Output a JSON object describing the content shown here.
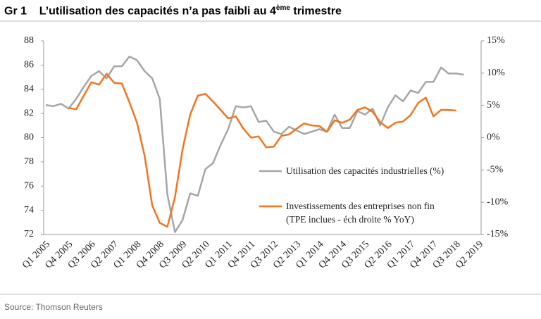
{
  "header": {
    "label": "Gr 1",
    "title": "L’utilisation des capacités n’a pas faibli au 4",
    "title_sup": "ème",
    "title_end": "trimestre"
  },
  "chart_data": {
    "type": "line",
    "categories": [
      "Q1 2005",
      null,
      null,
      "Q4 2005",
      null,
      null,
      "Q3 2006",
      null,
      null,
      "Q2 2007",
      null,
      null,
      "Q1 2008",
      null,
      null,
      "Q4 2008",
      null,
      null,
      "Q3 2009",
      null,
      null,
      "Q2 2010",
      null,
      null,
      "Q1 2011",
      null,
      null,
      "Q4 2011",
      null,
      null,
      "Q3 2012",
      null,
      null,
      "Q2 2013",
      null,
      null,
      "Q1 2014",
      null,
      null,
      "Q4 2014",
      null,
      null,
      "Q3 2015",
      null,
      null,
      "Q2 2016",
      null,
      null,
      "Q1 2017",
      null,
      null,
      "Q4 2017",
      null,
      null,
      "Q3 2018",
      null,
      null,
      "Q2 2019"
    ],
    "series": [
      {
        "name": "Utilisation des capacités industrielles (%)",
        "color": "#a6a6a6",
        "values": [
          82.7,
          82.6,
          82.8,
          82.4,
          83.2,
          84.2,
          85.1,
          85.5,
          84.9,
          85.9,
          85.9,
          86.7,
          86.4,
          85.5,
          84.9,
          83.2,
          75.3,
          72.2,
          73.2,
          75.4,
          75.2,
          77.4,
          77.9,
          79.4,
          80.7,
          82.6,
          82.5,
          82.6,
          81.3,
          81.4,
          80.5,
          80.3,
          80.9,
          80.6,
          80.3,
          80.5,
          80.7,
          80.5,
          81.9,
          80.8,
          80.8,
          82.2,
          81.9,
          82.4,
          81.0,
          82.5,
          83.5,
          83.0,
          83.9,
          83.7,
          84.6,
          84.6,
          85.8,
          85.3,
          85.3,
          85.2,
          null,
          null
        ]
      },
      {
        "name": "Investissements des entreprises non fin (TPE inclues - éch droite % YoY)",
        "color": "#f4741f",
        "axis": "y2",
        "values": [
          null,
          null,
          null,
          4.6,
          4.4,
          6.5,
          8.6,
          8.2,
          9.9,
          8.5,
          8.4,
          5.5,
          2.3,
          -2.8,
          -10.5,
          -13.2,
          -13.8,
          -9.2,
          -1.8,
          3.6,
          6.5,
          6.8,
          5.6,
          4.3,
          3.0,
          3.3,
          1.4,
          0.0,
          0.2,
          -1.5,
          -1.4,
          0.3,
          0.5,
          1.4,
          2.2,
          1.9,
          1.8,
          0.9,
          2.7,
          2.3,
          2.8,
          4.3,
          4.7,
          4.0,
          2.4,
          1.5,
          2.3,
          2.5,
          3.5,
          5.4,
          6.2,
          3.3,
          4.3,
          4.3,
          4.2,
          null,
          null,
          null
        ]
      }
    ],
    "ylim": [
      72,
      88
    ],
    "yticks": [
      72,
      74,
      76,
      78,
      80,
      82,
      84,
      86,
      88
    ],
    "y2lim": [
      -15,
      15
    ],
    "y2ticks": [
      {
        "value": -15,
        "label": "-15%"
      },
      {
        "value": -10,
        "label": "-10%"
      },
      {
        "value": -5,
        "label": "-5%"
      },
      {
        "value": 0,
        "label": "0%"
      },
      {
        "value": 5,
        "label": "5%"
      },
      {
        "value": 10,
        "label": "10%"
      },
      {
        "value": 15,
        "label": "15%"
      }
    ],
    "grid": false
  },
  "footer": {
    "source": "Source: Thomson Reuters"
  }
}
